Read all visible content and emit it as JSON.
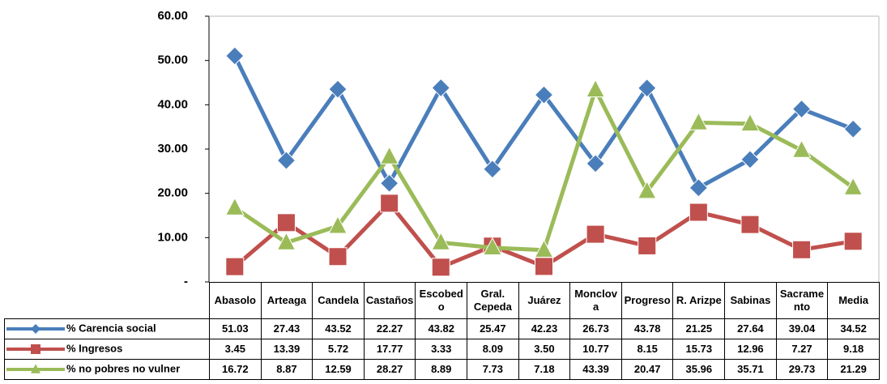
{
  "chart_data": {
    "type": "line",
    "categories": [
      "Abasolo",
      "Arteaga",
      "Candela",
      "Castaños",
      "Escobedo",
      "Gral. Cepeda",
      "Juárez",
      "Monclova",
      "Progreso",
      "R. Arizpe",
      "Sabinas",
      "Sacramento",
      "Media"
    ],
    "series": [
      {
        "name": "% Carencia social",
        "color": "#4a7ebb",
        "marker": "diamond",
        "values": [
          51.03,
          27.43,
          43.52,
          22.27,
          43.82,
          25.47,
          42.23,
          26.73,
          43.78,
          21.25,
          27.64,
          39.04,
          34.52
        ],
        "value_labels": [
          "51.03",
          "27.43",
          "43.52",
          "22.27",
          "43.82",
          "25.47",
          "42.23",
          "26.73",
          "43.78",
          "21.25",
          "27.64",
          "39.04",
          "34.52"
        ]
      },
      {
        "name": "% Ingresos",
        "color": "#c0504d",
        "marker": "square",
        "values": [
          3.45,
          13.39,
          5.72,
          17.77,
          3.33,
          8.09,
          3.5,
          10.77,
          8.15,
          15.73,
          12.96,
          7.27,
          9.18
        ],
        "value_labels": [
          "3.45",
          "13.39",
          "5.72",
          "17.77",
          "3.33",
          "8.09",
          "3.50",
          "10.77",
          "8.15",
          "15.73",
          "12.96",
          "7.27",
          "9.18"
        ]
      },
      {
        "name": "% no pobres no vulner",
        "color": "#9bbb59",
        "marker": "triangle",
        "values": [
          16.72,
          8.87,
          12.59,
          28.27,
          8.89,
          7.73,
          7.18,
          43.39,
          20.47,
          35.96,
          35.71,
          29.73,
          21.29
        ],
        "value_labels": [
          "16.72",
          "8.87",
          "12.59",
          "28.27",
          "8.89",
          "7.73",
          "7.18",
          "43.39",
          "20.47",
          "35.96",
          "35.71",
          "29.73",
          "21.29"
        ]
      }
    ],
    "ylim": [
      0,
      60
    ],
    "yticks": [
      {
        "value": 0,
        "label": "-"
      },
      {
        "value": 10,
        "label": "10.00"
      },
      {
        "value": 20,
        "label": "20.00"
      },
      {
        "value": 30,
        "label": "30.00"
      },
      {
        "value": 40,
        "label": "40.00"
      },
      {
        "value": 50,
        "label": "50.00"
      },
      {
        "value": 60,
        "label": "60.00"
      }
    ],
    "grid": false
  }
}
